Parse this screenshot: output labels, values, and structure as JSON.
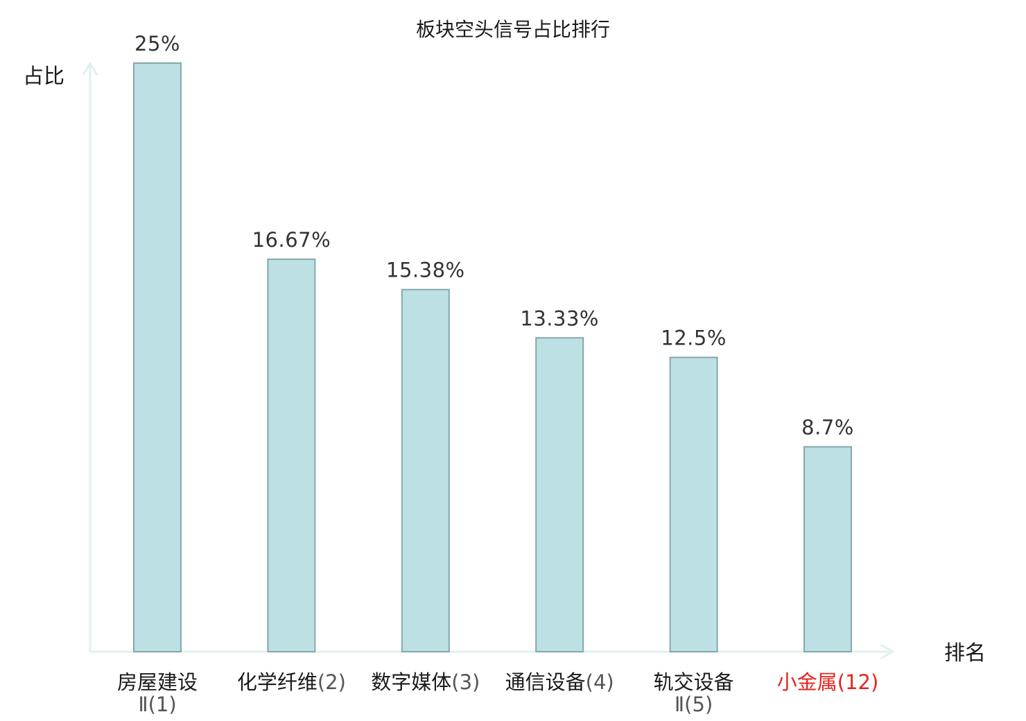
{
  "chart_data": {
    "type": "bar",
    "title": "板块空头信号占比排行",
    "ylabel": "占比",
    "xlabel": "排名",
    "ylim": [
      0,
      25
    ],
    "grid": false,
    "categories": [
      {
        "name": "房屋建设Ⅱ",
        "rank": "(1)",
        "highlight": false
      },
      {
        "name": "化学纤维",
        "rank": "(2)",
        "highlight": false
      },
      {
        "name": "数字媒体",
        "rank": "(3)",
        "highlight": false
      },
      {
        "name": "通信设备",
        "rank": "(4)",
        "highlight": false
      },
      {
        "name": "轨交设备Ⅱ",
        "rank": "(5)",
        "highlight": false
      },
      {
        "name": "小金属",
        "rank": "(12)",
        "highlight": true
      }
    ],
    "values": [
      25,
      16.67,
      15.38,
      13.33,
      12.5,
      8.7
    ],
    "value_labels": [
      "25%",
      "16.67%",
      "15.38%",
      "13.33%",
      "12.5%",
      "8.7%"
    ]
  },
  "colors": {
    "bar_fill": "#bce0e3",
    "bar_stroke": "#86a7aa",
    "axis": "#dff1ef",
    "text": "#1a1a1a",
    "highlight": "#e8231e"
  }
}
